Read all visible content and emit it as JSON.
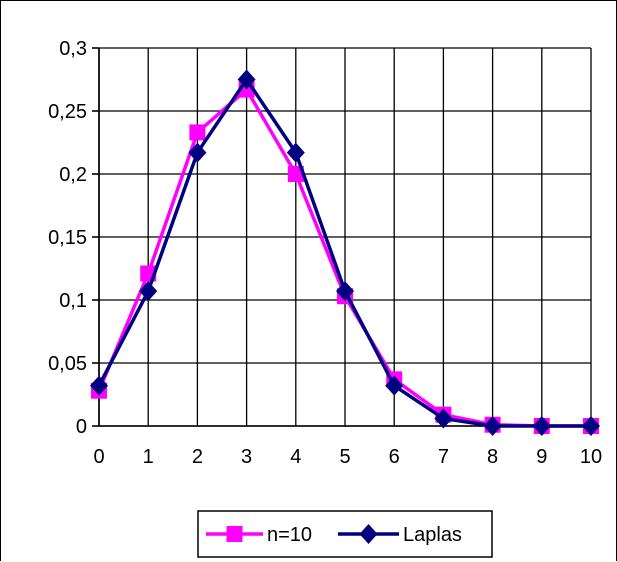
{
  "chart_data": {
    "type": "line",
    "x": [
      0,
      1,
      2,
      3,
      4,
      5,
      6,
      7,
      8,
      9,
      10
    ],
    "x_tick_labels": [
      "0",
      "1",
      "2",
      "3",
      "4",
      "5",
      "6",
      "7",
      "8",
      "9",
      "10"
    ],
    "y_tick_labels": [
      "0",
      "0,05",
      "0,1",
      "0,15",
      "0,2",
      "0,25",
      "0,3"
    ],
    "y_ticks": [
      0,
      0.05,
      0.1,
      0.15,
      0.2,
      0.25,
      0.3
    ],
    "xlim": [
      0,
      10
    ],
    "ylim": [
      0,
      0.3
    ],
    "grid": true,
    "legend_position": "bottom",
    "series": [
      {
        "name": "n=10",
        "color": "#ff00ff",
        "marker": "square",
        "values": [
          0.028,
          0.121,
          0.233,
          0.267,
          0.2,
          0.103,
          0.037,
          0.009,
          0.001,
          0.0,
          0.0
        ]
      },
      {
        "name": "Laplas",
        "color": "#000080",
        "marker": "diamond",
        "values": [
          0.032,
          0.107,
          0.217,
          0.275,
          0.217,
          0.107,
          0.032,
          0.006,
          0.0,
          0.0,
          0.0
        ]
      }
    ]
  }
}
